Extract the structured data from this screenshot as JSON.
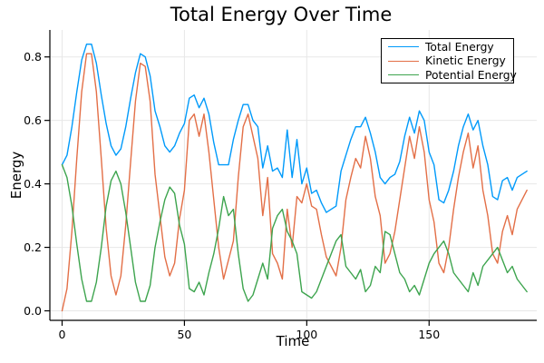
{
  "chart_data": {
    "type": "line",
    "title": "Total Energy Over Time",
    "xlabel": "Time",
    "ylabel": "Energy",
    "xlim": [
      -5,
      194
    ],
    "ylim": [
      -0.03,
      0.885
    ],
    "x_ticks": [
      0,
      50,
      100,
      150
    ],
    "x_tick_labels": [
      "0",
      "50",
      "100",
      "150"
    ],
    "y_ticks": [
      0.0,
      0.2,
      0.4,
      0.6,
      0.8
    ],
    "y_tick_labels": [
      "0.0",
      "0.2",
      "0.4",
      "0.6",
      "0.8"
    ],
    "grid": true,
    "grid_color": "#e7e7e7",
    "axis_color": "#000000",
    "legend_position": "top-right",
    "x": {
      "start": 0,
      "step": 2,
      "end": 190
    },
    "series": [
      {
        "name": "Total Energy",
        "color": "#009AFA",
        "values": [
          0.46,
          0.49,
          0.58,
          0.69,
          0.79,
          0.84,
          0.84,
          0.78,
          0.68,
          0.59,
          0.52,
          0.49,
          0.51,
          0.58,
          0.67,
          0.75,
          0.81,
          0.8,
          0.74,
          0.63,
          0.58,
          0.52,
          0.5,
          0.52,
          0.56,
          0.59,
          0.67,
          0.68,
          0.64,
          0.67,
          0.62,
          0.53,
          0.46,
          0.46,
          0.46,
          0.54,
          0.6,
          0.65,
          0.65,
          0.6,
          0.58,
          0.45,
          0.52,
          0.44,
          0.45,
          0.42,
          0.57,
          0.42,
          0.54,
          0.4,
          0.45,
          0.37,
          0.38,
          0.34,
          0.31,
          0.32,
          0.33,
          0.44,
          0.49,
          0.54,
          0.58,
          0.58,
          0.61,
          0.56,
          0.5,
          0.42,
          0.4,
          0.42,
          0.43,
          0.47,
          0.55,
          0.61,
          0.56,
          0.63,
          0.6,
          0.5,
          0.46,
          0.35,
          0.34,
          0.38,
          0.44,
          0.52,
          0.58,
          0.62,
          0.57,
          0.6,
          0.52,
          0.46,
          0.36,
          0.35,
          0.41,
          0.42,
          0.38,
          0.42,
          0.43,
          0.44
        ]
      },
      {
        "name": "Kinetic Energy",
        "color": "#E36F47",
        "values": [
          0.0,
          0.07,
          0.25,
          0.48,
          0.69,
          0.81,
          0.81,
          0.69,
          0.48,
          0.26,
          0.11,
          0.05,
          0.11,
          0.27,
          0.47,
          0.66,
          0.78,
          0.77,
          0.66,
          0.43,
          0.3,
          0.17,
          0.11,
          0.15,
          0.29,
          0.38,
          0.6,
          0.62,
          0.55,
          0.62,
          0.5,
          0.35,
          0.2,
          0.1,
          0.16,
          0.22,
          0.42,
          0.58,
          0.62,
          0.55,
          0.48,
          0.3,
          0.42,
          0.18,
          0.15,
          0.1,
          0.32,
          0.2,
          0.36,
          0.34,
          0.4,
          0.33,
          0.32,
          0.24,
          0.17,
          0.14,
          0.11,
          0.2,
          0.35,
          0.42,
          0.48,
          0.45,
          0.55,
          0.48,
          0.36,
          0.3,
          0.15,
          0.18,
          0.25,
          0.35,
          0.45,
          0.55,
          0.48,
          0.58,
          0.5,
          0.35,
          0.28,
          0.15,
          0.12,
          0.2,
          0.32,
          0.42,
          0.5,
          0.56,
          0.45,
          0.52,
          0.38,
          0.3,
          0.18,
          0.15,
          0.25,
          0.3,
          0.24,
          0.32,
          0.35,
          0.38
        ]
      },
      {
        "name": "Potential Energy",
        "color": "#3DA44E",
        "values": [
          0.46,
          0.42,
          0.33,
          0.21,
          0.1,
          0.03,
          0.03,
          0.09,
          0.2,
          0.33,
          0.41,
          0.44,
          0.4,
          0.31,
          0.2,
          0.09,
          0.03,
          0.03,
          0.08,
          0.2,
          0.28,
          0.35,
          0.39,
          0.37,
          0.27,
          0.21,
          0.07,
          0.06,
          0.09,
          0.05,
          0.12,
          0.18,
          0.26,
          0.36,
          0.3,
          0.32,
          0.18,
          0.07,
          0.03,
          0.05,
          0.1,
          0.15,
          0.1,
          0.26,
          0.3,
          0.32,
          0.25,
          0.22,
          0.18,
          0.06,
          0.05,
          0.04,
          0.06,
          0.1,
          0.14,
          0.18,
          0.22,
          0.24,
          0.14,
          0.12,
          0.1,
          0.13,
          0.06,
          0.08,
          0.14,
          0.12,
          0.25,
          0.24,
          0.18,
          0.12,
          0.1,
          0.06,
          0.08,
          0.05,
          0.1,
          0.15,
          0.18,
          0.2,
          0.22,
          0.18,
          0.12,
          0.1,
          0.08,
          0.06,
          0.12,
          0.08,
          0.14,
          0.16,
          0.18,
          0.2,
          0.16,
          0.12,
          0.14,
          0.1,
          0.08,
          0.06
        ]
      }
    ]
  }
}
